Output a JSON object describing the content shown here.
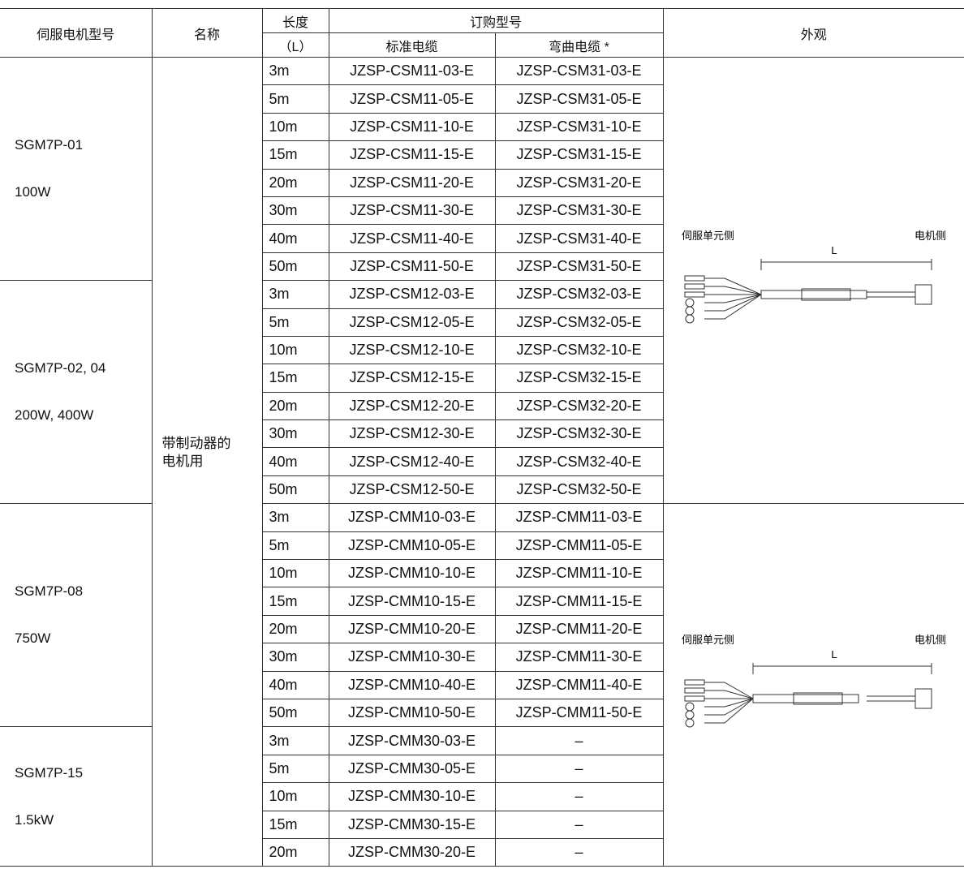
{
  "header": {
    "model": "伺服电机型号",
    "name": "名称",
    "length": "长度",
    "length_unit": "（L）",
    "order": "订购型号",
    "standard": "标准电缆",
    "bent": "弯曲电缆 *",
    "appearance": "外观"
  },
  "name_cell": [
    "带制动器的",
    "电机用"
  ],
  "groups": [
    {
      "model": "SGM7P-01",
      "power": "100W",
      "rows": [
        [
          "3m",
          "JZSP-CSM11-03-E",
          "JZSP-CSM31-03-E"
        ],
        [
          "5m",
          "JZSP-CSM11-05-E",
          "JZSP-CSM31-05-E"
        ],
        [
          "10m",
          "JZSP-CSM11-10-E",
          "JZSP-CSM31-10-E"
        ],
        [
          "15m",
          "JZSP-CSM11-15-E",
          "JZSP-CSM31-15-E"
        ],
        [
          "20m",
          "JZSP-CSM11-20-E",
          "JZSP-CSM31-20-E"
        ],
        [
          "30m",
          "JZSP-CSM11-30-E",
          "JZSP-CSM31-30-E"
        ],
        [
          "40m",
          "JZSP-CSM11-40-E",
          "JZSP-CSM31-40-E"
        ],
        [
          "50m",
          "JZSP-CSM11-50-E",
          "JZSP-CSM31-50-E"
        ]
      ]
    },
    {
      "model": "SGM7P-02, 04",
      "power": "200W, 400W",
      "rows": [
        [
          "3m",
          "JZSP-CSM12-03-E",
          "JZSP-CSM32-03-E"
        ],
        [
          "5m",
          "JZSP-CSM12-05-E",
          "JZSP-CSM32-05-E"
        ],
        [
          "10m",
          "JZSP-CSM12-10-E",
          "JZSP-CSM32-10-E"
        ],
        [
          "15m",
          "JZSP-CSM12-15-E",
          "JZSP-CSM32-15-E"
        ],
        [
          "20m",
          "JZSP-CSM12-20-E",
          "JZSP-CSM32-20-E"
        ],
        [
          "30m",
          "JZSP-CSM12-30-E",
          "JZSP-CSM32-30-E"
        ],
        [
          "40m",
          "JZSP-CSM12-40-E",
          "JZSP-CSM32-40-E"
        ],
        [
          "50m",
          "JZSP-CSM12-50-E",
          "JZSP-CSM32-50-E"
        ]
      ]
    },
    {
      "model": "SGM7P-08",
      "power": "750W",
      "rows": [
        [
          "3m",
          "JZSP-CMM10-03-E",
          "JZSP-CMM11-03-E"
        ],
        [
          "5m",
          "JZSP-CMM10-05-E",
          "JZSP-CMM11-05-E"
        ],
        [
          "10m",
          "JZSP-CMM10-10-E",
          "JZSP-CMM11-10-E"
        ],
        [
          "15m",
          "JZSP-CMM10-15-E",
          "JZSP-CMM11-15-E"
        ],
        [
          "20m",
          "JZSP-CMM10-20-E",
          "JZSP-CMM11-20-E"
        ],
        [
          "30m",
          "JZSP-CMM10-30-E",
          "JZSP-CMM11-30-E"
        ],
        [
          "40m",
          "JZSP-CMM10-40-E",
          "JZSP-CMM11-40-E"
        ],
        [
          "50m",
          "JZSP-CMM10-50-E",
          "JZSP-CMM11-50-E"
        ]
      ]
    },
    {
      "model": "SGM7P-15",
      "power": "1.5kW",
      "rows": [
        [
          "3m",
          "JZSP-CMM30-03-E",
          "–"
        ],
        [
          "5m",
          "JZSP-CMM30-05-E",
          "–"
        ],
        [
          "10m",
          "JZSP-CMM30-10-E",
          "–"
        ],
        [
          "15m",
          "JZSP-CMM30-15-E",
          "–"
        ],
        [
          "20m",
          "JZSP-CMM30-20-E",
          "–"
        ]
      ]
    }
  ],
  "figures": [
    {
      "left": "伺服单元侧",
      "right": "电机侧",
      "dim": "L"
    },
    {
      "left": "伺服单元侧",
      "right": "电机侧",
      "dim": "L"
    }
  ]
}
